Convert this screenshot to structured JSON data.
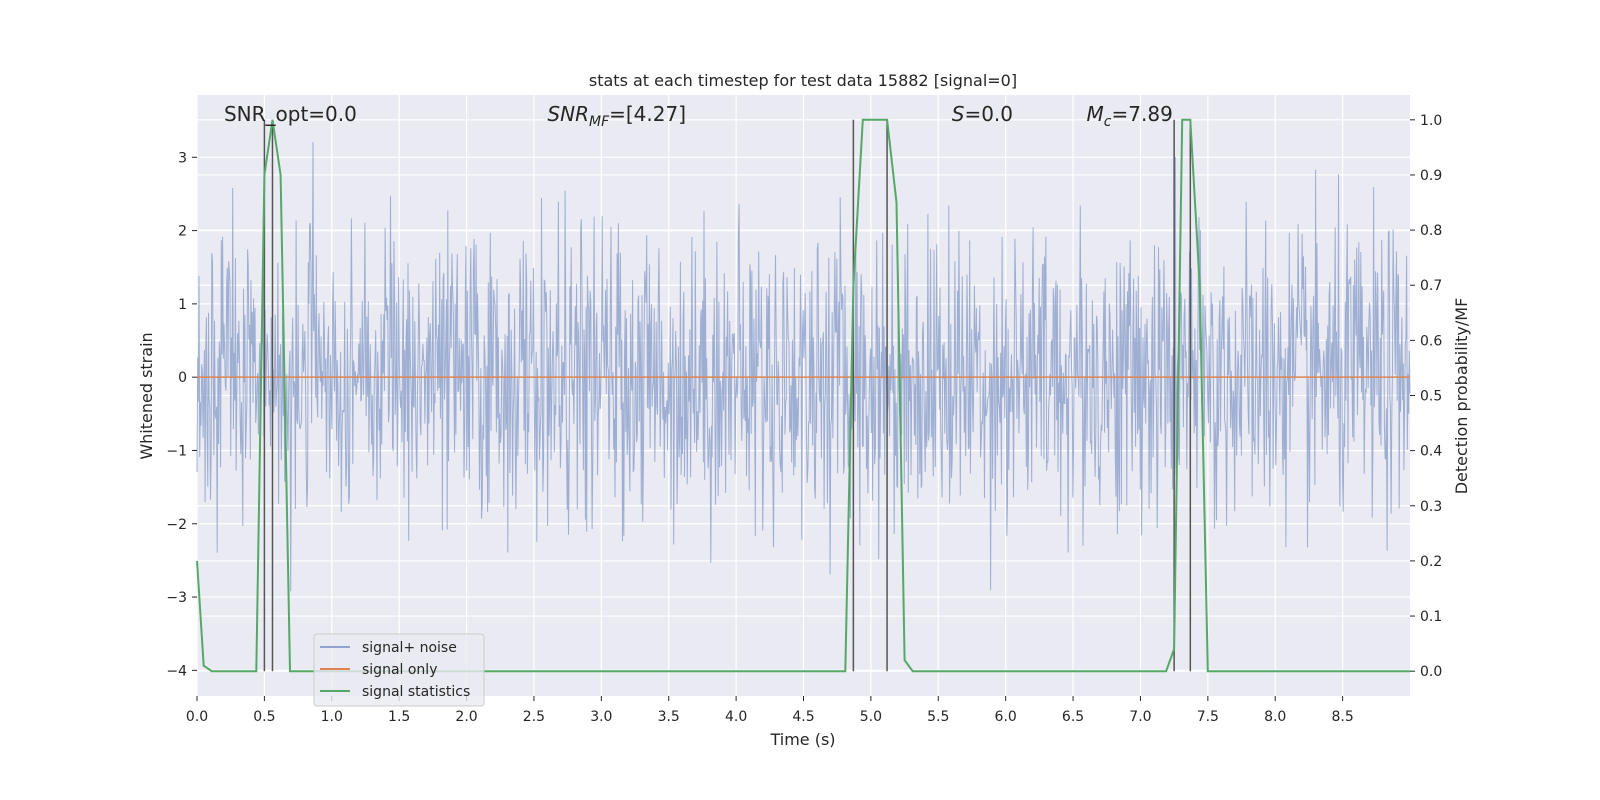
{
  "chart_data": {
    "type": "line",
    "title": "stats at each timestep for test data 15882 [signal=0]",
    "xlabel": "Time (s)",
    "ylabel": "Whitened strain",
    "y2label": "Detection probability/MF",
    "xlim": [
      0.0,
      9.0
    ],
    "ylim": [
      -4.35,
      3.85
    ],
    "y2lim": [
      -0.045,
      1.045
    ],
    "x_ticks": [
      0.0,
      0.5,
      1.0,
      1.5,
      2.0,
      2.5,
      3.0,
      3.5,
      4.0,
      4.5,
      5.0,
      5.5,
      6.0,
      6.5,
      7.0,
      7.5,
      8.0,
      8.5
    ],
    "x_tick_labels": [
      "0.0",
      "0.5",
      "1.0",
      "1.5",
      "2.0",
      "2.5",
      "3.0",
      "3.5",
      "4.0",
      "4.5",
      "5.0",
      "5.5",
      "6.0",
      "6.5",
      "7.0",
      "7.5",
      "8.0",
      "8.5"
    ],
    "y_ticks": [
      3,
      2,
      1,
      0,
      -1,
      -2,
      -3,
      -4
    ],
    "y_tick_labels": [
      "3",
      "2",
      "1",
      "0",
      "−1",
      "−2",
      "−3",
      "−4"
    ],
    "y2_ticks": [
      1.0,
      0.9,
      0.8,
      0.7,
      0.6,
      0.5,
      0.4,
      0.3,
      0.2,
      0.1,
      0.0
    ],
    "y2_tick_labels": [
      "1.0",
      "0.9",
      "0.8",
      "0.7",
      "0.6",
      "0.5",
      "0.4",
      "0.3",
      "0.2",
      "0.1",
      "0.0"
    ],
    "grid": true,
    "legend_position": "lower-left",
    "series": [
      {
        "name": "signal+ noise",
        "color": "#8fa3cc",
        "axis": "left",
        "typical_amplitude": 1.8,
        "peak_amplitude": 3.4
      },
      {
        "name": "signal only",
        "color": "#dd8452",
        "axis": "left",
        "x": [
          0.0,
          9.0
        ],
        "y": [
          0.0,
          0.0
        ]
      },
      {
        "name": "signal statistics",
        "color": "#55a868",
        "axis": "right",
        "x": [
          0.0,
          0.05,
          0.11,
          0.44,
          0.5,
          0.56,
          0.62,
          0.69,
          0.75,
          0.81,
          4.81,
          4.87,
          4.94,
          5.12,
          5.19,
          5.25,
          5.31,
          6.5,
          7.19,
          7.25,
          7.31,
          7.37,
          7.44,
          7.5,
          9.0
        ],
        "y": [
          0.2,
          0.01,
          0.0,
          0.0,
          0.9,
          1.0,
          0.9,
          0.0,
          0.0,
          0.0,
          0.0,
          0.7,
          1.0,
          1.0,
          0.85,
          0.02,
          0.0,
          0.0,
          0.0,
          0.04,
          1.0,
          1.0,
          0.7,
          0.0,
          0.0
        ]
      }
    ],
    "vertical_markers": [
      0.5,
      0.56,
      4.87,
      5.12,
      7.25,
      7.37
    ],
    "marker_color": "#555555",
    "annotations": [
      {
        "text": "SNR_opt=0.0",
        "x": 0.2
      },
      {
        "text": "SNR_MF=[4.27]",
        "x": 2.6
      },
      {
        "text": "S=0.0",
        "x": 5.6
      },
      {
        "text": "M_c=7.89",
        "x": 6.6
      }
    ],
    "plot_background": "#eaeaf2",
    "grid_color": "#ffffff"
  }
}
